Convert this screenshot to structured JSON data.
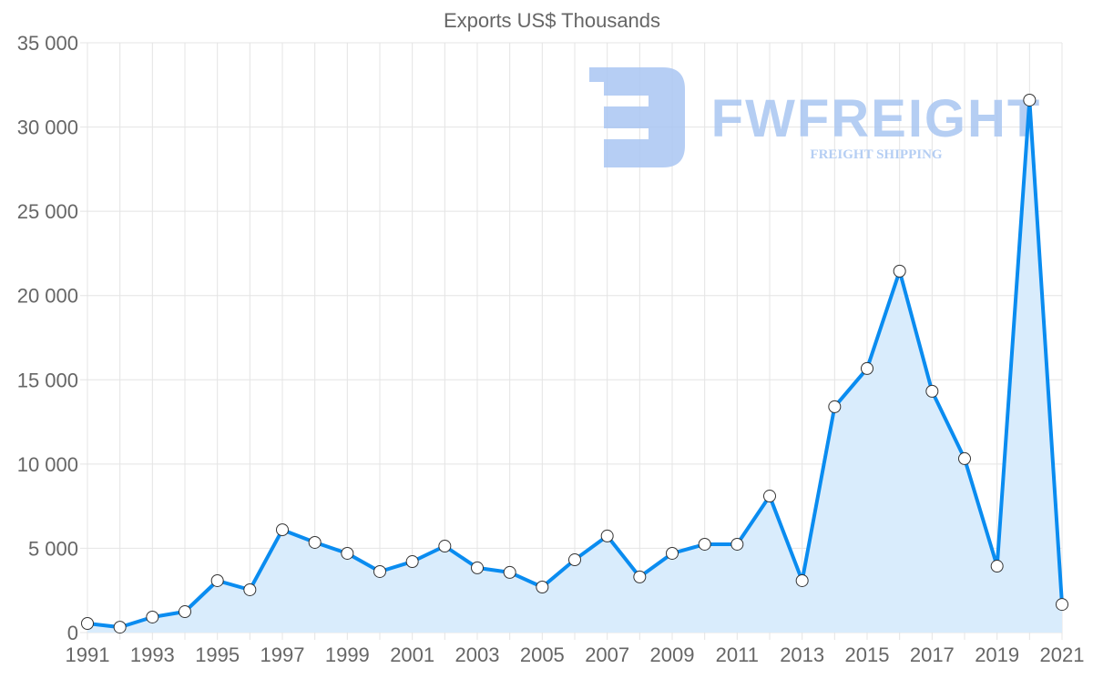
{
  "chart_data": {
    "type": "line",
    "title": "Exports US$ Thousands",
    "xlabel": "",
    "ylabel": "",
    "x": [
      1991,
      1992,
      1993,
      1994,
      1995,
      1996,
      1997,
      1998,
      1999,
      2000,
      2001,
      2002,
      2003,
      2004,
      2005,
      2006,
      2007,
      2008,
      2009,
      2010,
      2011,
      2012,
      2013,
      2014,
      2015,
      2016,
      2017,
      2018,
      2019,
      2020,
      2021
    ],
    "series": [
      {
        "name": "Exports US$ Thousands",
        "values": [
          540,
          320,
          920,
          1240,
          3080,
          2540,
          6100,
          5350,
          4700,
          3620,
          4210,
          5130,
          3840,
          3570,
          2700,
          4320,
          5730,
          3300,
          4700,
          5240,
          5240,
          8100,
          3080,
          13400,
          15670,
          21450,
          14320,
          10320,
          3940,
          31600,
          1670
        ],
        "color": "#0a8cf0",
        "fill": "#d9ecfc"
      }
    ],
    "ylim": [
      0,
      35000
    ],
    "yticks": [
      0,
      5000,
      10000,
      15000,
      20000,
      25000,
      30000,
      35000
    ],
    "ytick_labels": [
      "0",
      "5 000",
      "10 000",
      "15 000",
      "20 000",
      "25 000",
      "30 000",
      "35 000"
    ],
    "xtick_labels": [
      "1991",
      "1993",
      "1995",
      "1997",
      "1999",
      "2001",
      "2003",
      "2005",
      "2007",
      "2009",
      "2011",
      "2013",
      "2015",
      "2017",
      "2019",
      "2021"
    ],
    "grid": true,
    "legend": "none"
  },
  "watermark": {
    "brand": "FWFREIGHT",
    "tagline": "FREIGHT SHIPPING",
    "color": "#a9c6f2"
  }
}
